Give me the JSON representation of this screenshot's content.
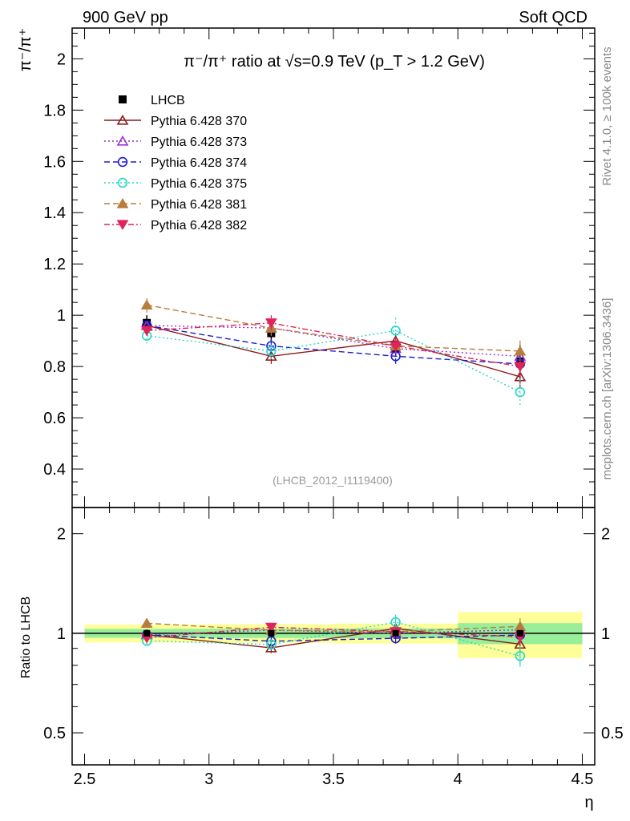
{
  "header": {
    "left": "900 GeV pp",
    "right": "Soft QCD",
    "side_rivet": "Rivet 4.1.0, ≥ 100k events",
    "side_mcplots": "mcplots.cern.ch [arXiv:1306.3436]"
  },
  "chart_data": {
    "type": "line",
    "title": "π⁻/π⁺ ratio at √s=0.9 TeV (p_T > 1.2 GeV)",
    "analysis_label": "(LHCB_2012_I1119400)",
    "xlabel": "η",
    "ylabel": "π⁻/π⁺",
    "ratio_ylabel": "Ratio to LHCB",
    "xlim": [
      2.45,
      4.55
    ],
    "ylim": [
      0.25,
      2.12
    ],
    "ratio_ylim": [
      0.4,
      2.4
    ],
    "x_ticks": [
      "2.5",
      "3",
      "3.5",
      "4",
      "4.5"
    ],
    "y_ticks": [
      "0.4",
      "0.6",
      "0.8",
      "1",
      "1.2",
      "1.4",
      "1.6",
      "1.8",
      "2"
    ],
    "ratio_ticks": [
      "0.5",
      "1",
      "2"
    ],
    "bins": [
      [
        2.5,
        3.0
      ],
      [
        3.0,
        3.5
      ],
      [
        3.5,
        4.0
      ],
      [
        4.0,
        4.5
      ]
    ],
    "x": [
      2.75,
      3.25,
      3.75,
      4.25
    ],
    "data": {
      "name": "LHCB",
      "values": [
        0.97,
        0.93,
        0.87,
        0.82
      ],
      "band_inner": [
        0.015,
        0.015,
        0.015,
        0.03
      ],
      "band_outer": [
        0.03,
        0.03,
        0.03,
        0.065
      ]
    },
    "series": [
      {
        "name": "Pythia 6.428 370",
        "values": [
          0.96,
          0.84,
          0.9,
          0.76
        ],
        "errors": [
          0.02,
          0.03,
          0.03,
          0.04
        ],
        "color": "#8b1a1a",
        "marker": "triangle-open",
        "dash": "solid"
      },
      {
        "name": "Pythia 6.428 373",
        "values": [
          0.96,
          0.95,
          0.87,
          0.84
        ],
        "errors": [
          0.02,
          0.03,
          0.03,
          0.04
        ],
        "color": "#9b30d0",
        "marker": "triangle-open",
        "dash": "dotted"
      },
      {
        "name": "Pythia 6.428 374",
        "values": [
          0.96,
          0.88,
          0.84,
          0.81
        ],
        "errors": [
          0.02,
          0.03,
          0.03,
          0.04
        ],
        "color": "#1c1cd0",
        "marker": "circle-open",
        "dash": "dashed"
      },
      {
        "name": "Pythia 6.428 375",
        "values": [
          0.92,
          0.86,
          0.94,
          0.7
        ],
        "errors": [
          0.03,
          0.03,
          0.05,
          0.05
        ],
        "color": "#22d8c8",
        "marker": "circle-open",
        "dash": "dotted"
      },
      {
        "name": "Pythia 6.428 381",
        "values": [
          1.04,
          0.95,
          0.88,
          0.86
        ],
        "errors": [
          0.03,
          0.03,
          0.03,
          0.05
        ],
        "color": "#b87c3c",
        "marker": "triangle-filled",
        "dash": "dashed"
      },
      {
        "name": "Pythia 6.428 382",
        "values": [
          0.94,
          0.97,
          0.88,
          0.8
        ],
        "errors": [
          0.02,
          0.03,
          0.03,
          0.04
        ],
        "color": "#e0245a",
        "marker": "triangledown-filled",
        "dash": "dashdot"
      }
    ]
  }
}
